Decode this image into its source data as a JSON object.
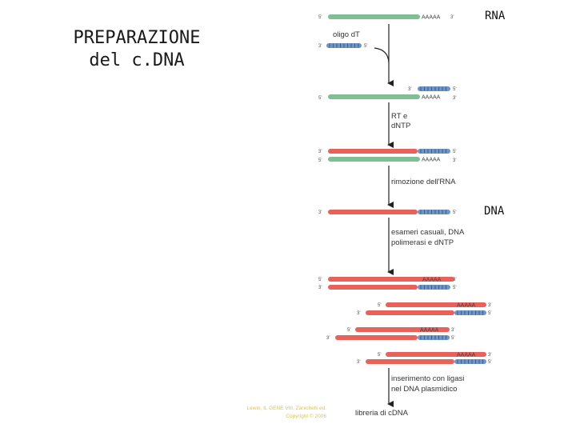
{
  "title": {
    "line1": "PREPARAZIONE",
    "line2": "del c.DNA"
  },
  "labels": {
    "rna": "RNA",
    "dna": "DNA"
  },
  "credit": {
    "line1": "Lewin, IL GENE VIII, Zanichelli ed.",
    "line2": "Copyright © 2006"
  },
  "steps": {
    "oligo": "oligo dT",
    "rt_line1": "RT e",
    "rt_line2": "dNTP",
    "removal": "rimozione dell'RNA",
    "hexamers_line1": "esameri casuali, DNA",
    "hexamers_line2": "polimerasi e dNTP",
    "ligase_line1": "inserimento con ligasi",
    "ligase_line2": "nel DNA plasmidico",
    "library": "libreria di cDNA"
  },
  "strand_labels": {
    "five": "5'",
    "three": "3'",
    "polyA": "AAAAA",
    "polyT": "TTTTT"
  },
  "colors": {
    "rna": "#7fbf93",
    "dna": "#e8615a",
    "oligo": "#6f95c7",
    "arrow": "#222222",
    "credit": "#d9c64a"
  }
}
